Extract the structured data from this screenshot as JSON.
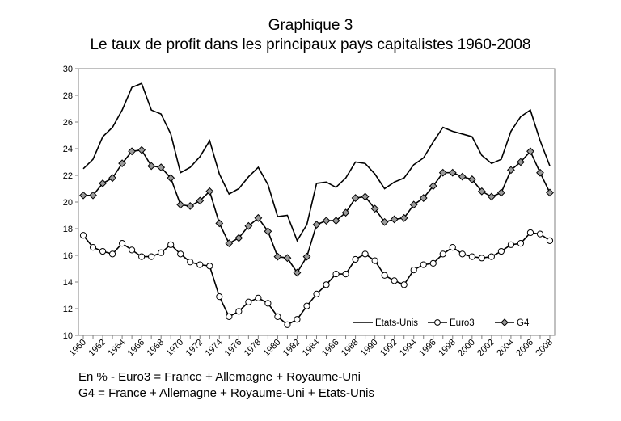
{
  "chart_data": {
    "type": "line",
    "title": "Graphique 3",
    "subtitle": "Le taux de profit dans les principaux pays capitalistes 1960-2008",
    "x": [
      1960,
      1961,
      1962,
      1963,
      1964,
      1965,
      1966,
      1967,
      1968,
      1969,
      1970,
      1971,
      1972,
      1973,
      1974,
      1975,
      1976,
      1977,
      1978,
      1979,
      1980,
      1981,
      1982,
      1983,
      1984,
      1985,
      1986,
      1987,
      1988,
      1989,
      1990,
      1991,
      1992,
      1993,
      1994,
      1995,
      1996,
      1997,
      1998,
      1999,
      2000,
      2001,
      2002,
      2003,
      2004,
      2005,
      2006,
      2007,
      2008
    ],
    "x_tick_labels": [
      "1960",
      "1962",
      "1964",
      "1966",
      "1968",
      "1970",
      "1972",
      "1974",
      "1976",
      "1978",
      "1980",
      "1982",
      "1984",
      "1986",
      "1988",
      "1990",
      "1992",
      "1994",
      "1996",
      "1998",
      "2000",
      "2002",
      "2004",
      "2006",
      "2008"
    ],
    "ylim": [
      10,
      30
    ],
    "y_ticks": [
      10,
      12,
      14,
      16,
      18,
      20,
      22,
      24,
      26,
      28,
      30
    ],
    "grid": false,
    "legend_position": "bottom-right",
    "series": [
      {
        "name": "Etats-Unis",
        "color": "#000000",
        "marker": "none",
        "values": [
          22.5,
          23.2,
          24.9,
          25.6,
          26.9,
          28.6,
          28.9,
          26.9,
          26.6,
          25.1,
          22.2,
          22.6,
          23.4,
          24.6,
          22.1,
          20.6,
          21.0,
          21.9,
          22.6,
          21.3,
          18.9,
          19.0,
          17.1,
          18.3,
          21.4,
          21.5,
          21.1,
          21.8,
          23.0,
          22.9,
          22.1,
          21.0,
          21.5,
          21.8,
          22.8,
          23.3,
          24.5,
          25.6,
          25.3,
          25.1,
          24.9,
          23.5,
          22.9,
          23.2,
          25.3,
          26.4,
          26.9,
          24.6,
          22.7
        ]
      },
      {
        "name": "Euro3",
        "color": "#000000",
        "marker": "open-circle",
        "values": [
          17.5,
          16.6,
          16.3,
          16.1,
          16.9,
          16.4,
          15.9,
          15.9,
          16.2,
          16.8,
          16.1,
          15.5,
          15.3,
          15.2,
          12.9,
          11.4,
          11.8,
          12.5,
          12.8,
          12.4,
          11.4,
          10.8,
          11.2,
          12.2,
          13.1,
          13.8,
          14.6,
          14.6,
          15.7,
          16.1,
          15.6,
          14.5,
          14.1,
          13.8,
          14.9,
          15.3,
          15.4,
          16.1,
          16.6,
          16.1,
          15.9,
          15.8,
          15.9,
          16.3,
          16.8,
          16.9,
          17.7,
          17.6,
          17.1
        ]
      },
      {
        "name": "G4",
        "color": "#000000",
        "marker": "diamond",
        "values": [
          20.5,
          20.5,
          21.4,
          21.8,
          22.9,
          23.8,
          23.9,
          22.7,
          22.6,
          21.8,
          19.8,
          19.7,
          20.1,
          20.8,
          18.4,
          16.9,
          17.3,
          18.2,
          18.8,
          17.8,
          15.9,
          15.8,
          14.7,
          15.9,
          18.3,
          18.6,
          18.6,
          19.2,
          20.3,
          20.4,
          19.5,
          18.5,
          18.7,
          18.8,
          19.8,
          20.3,
          21.2,
          22.2,
          22.2,
          21.9,
          21.7,
          20.8,
          20.4,
          20.7,
          22.4,
          23.0,
          23.8,
          22.2,
          20.7
        ]
      }
    ],
    "notes": [
      "En % - Euro3 = France + Allemagne + Royaume-Uni",
      "G4 = France + Allemagne + Royaume-Uni + Etats-Unis"
    ]
  }
}
